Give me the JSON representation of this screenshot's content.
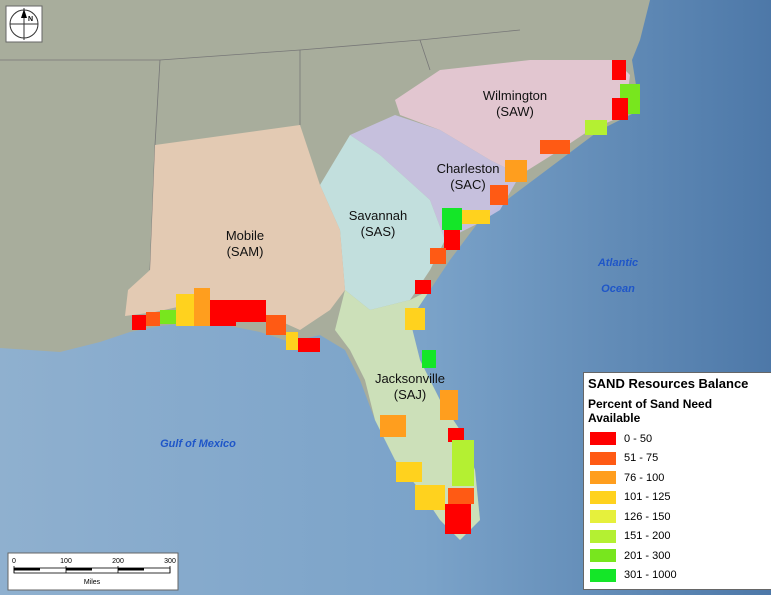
{
  "map": {
    "districts": [
      {
        "name": "Wilmington",
        "code": "(SAW)"
      },
      {
        "name": "Charleston",
        "code": "(SAC)"
      },
      {
        "name": "Savannah",
        "code": "(SAS)"
      },
      {
        "name": "Mobile",
        "code": "(SAM)"
      },
      {
        "name": "Jacksonville",
        "code": "(SAJ)"
      }
    ],
    "water": [
      "Atlantic",
      "Ocean",
      "Gulf of Mexico"
    ],
    "north": "N",
    "legend": {
      "title": "SAND Resources Balance",
      "subtitle": "Percent of Sand Need Available",
      "items": [
        {
          "label": "0 - 50",
          "color": "#ff0000"
        },
        {
          "label": "51 - 75",
          "color": "#ff5a14"
        },
        {
          "label": "76 - 100",
          "color": "#ff9e1e"
        },
        {
          "label": "101 - 125",
          "color": "#ffd21e"
        },
        {
          "label": "126 - 150",
          "color": "#e6f03c"
        },
        {
          "label": "151 - 200",
          "color": "#b4f032"
        },
        {
          "label": "201 - 300",
          "color": "#78e61e"
        },
        {
          "label": "301 - 1000",
          "color": "#14e628"
        }
      ]
    },
    "scale": {
      "ticks": [
        0,
        100,
        200,
        300
      ],
      "unit": "Miles"
    }
  }
}
